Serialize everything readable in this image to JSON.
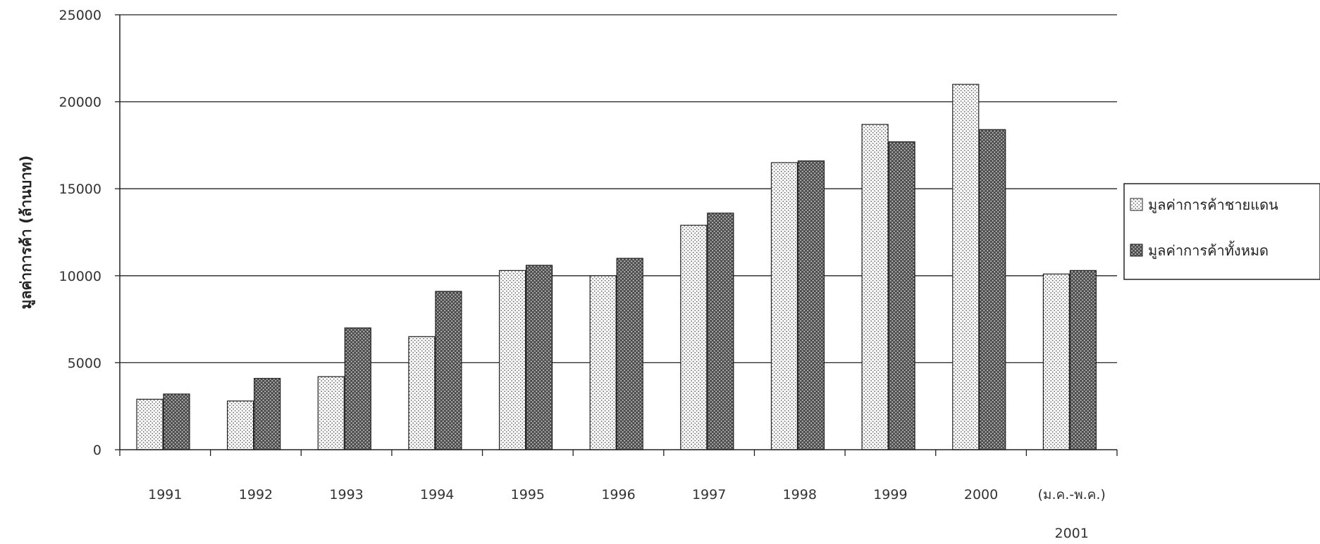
{
  "chart_data": {
    "type": "bar",
    "title": "",
    "xlabel": "",
    "ylabel": "มูลค่าการค้า (ล้านบาท)",
    "ylim": [
      0,
      25000
    ],
    "yticks": [
      0,
      5000,
      10000,
      15000,
      20000,
      25000
    ],
    "grid": true,
    "legend_position": "right",
    "categories": [
      {
        "line1": "1991",
        "line2": ""
      },
      {
        "line1": "1992",
        "line2": ""
      },
      {
        "line1": "1993",
        "line2": ""
      },
      {
        "line1": "1994",
        "line2": ""
      },
      {
        "line1": "1995",
        "line2": ""
      },
      {
        "line1": "1996",
        "line2": ""
      },
      {
        "line1": "1997",
        "line2": ""
      },
      {
        "line1": "1998",
        "line2": ""
      },
      {
        "line1": "1999",
        "line2": ""
      },
      {
        "line1": "2000",
        "line2": ""
      },
      {
        "line1": "(ม.ค.-พ.ค.)",
        "line2": "2001"
      }
    ],
    "series": [
      {
        "name": "มูลค่าการค้าชายแดน",
        "pattern": "light-dots",
        "color": "#ffffff",
        "values": [
          2900,
          2800,
          4200,
          6500,
          10300,
          10000,
          12900,
          16500,
          18700,
          21000,
          10100
        ]
      },
      {
        "name": "มูลค่าการค้าทั้งหมด",
        "pattern": "dark-dots",
        "color": "#777777",
        "values": [
          3200,
          4100,
          7000,
          9100,
          10600,
          11000,
          13600,
          16600,
          17700,
          18400,
          10300
        ]
      }
    ]
  }
}
